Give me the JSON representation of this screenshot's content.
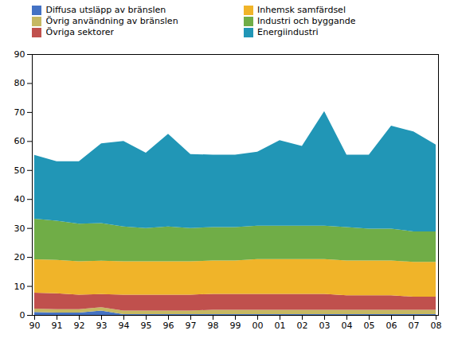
{
  "chart_data": {
    "type": "area",
    "stacked": true,
    "legend": "upper left",
    "categories": [
      "90",
      "91",
      "92",
      "93",
      "94",
      "95",
      "96",
      "97",
      "98",
      "99",
      "00",
      "01",
      "02",
      "03",
      "04",
      "05",
      "06",
      "07",
      "08"
    ],
    "series": [
      {
        "name": "Diffusa utsläpp av bränslen",
        "color": "#4472c4",
        "values": [
          1.0,
          0.8,
          0.8,
          1.5,
          0.3,
          0.3,
          0.3,
          0.3,
          0.3,
          0.3,
          0.3,
          0.3,
          0.3,
          0.3,
          0.3,
          0.3,
          0.3,
          0.3,
          0.3
        ]
      },
      {
        "name": "Övrig användning av bränslen",
        "color": "#c6b862",
        "values": [
          1.2,
          1.2,
          1.2,
          1.2,
          1.2,
          1.2,
          1.2,
          1.2,
          1.5,
          1.5,
          1.5,
          1.5,
          1.5,
          1.5,
          1.5,
          1.5,
          1.5,
          1.5,
          1.5
        ]
      },
      {
        "name": "Övriga sektorer",
        "color": "#c0504d",
        "values": [
          5.5,
          5.5,
          5.0,
          4.5,
          5.5,
          5.5,
          5.5,
          5.5,
          5.5,
          5.5,
          5.5,
          5.5,
          5.5,
          5.5,
          5.0,
          5.0,
          5.0,
          4.5,
          4.5
        ]
      },
      {
        "name": "Inhemsk samfärdsel",
        "color": "#f0b429",
        "values": [
          11.5,
          11.5,
          11.5,
          11.5,
          11.5,
          11.5,
          11.5,
          11.5,
          11.5,
          11.5,
          12.0,
          12.0,
          12.0,
          12.0,
          12.0,
          12.0,
          12.0,
          12.0,
          12.0
        ]
      },
      {
        "name": "Industri och byggande",
        "color": "#70ad47",
        "values": [
          14.0,
          13.5,
          13.0,
          13.0,
          12.0,
          11.5,
          12.0,
          11.5,
          11.5,
          11.5,
          11.5,
          11.5,
          11.5,
          11.5,
          11.5,
          11.0,
          11.0,
          10.5,
          10.5
        ]
      },
      {
        "name": "Energiindustri",
        "color": "#2196b6",
        "values": [
          22.0,
          20.5,
          21.5,
          27.5,
          29.5,
          26.0,
          32.0,
          25.5,
          25.0,
          25.0,
          25.5,
          29.5,
          27.5,
          39.5,
          25.0,
          25.5,
          35.5,
          34.5,
          30.0
        ]
      }
    ],
    "ylim": [
      0,
      90
    ],
    "yticks": [
      0,
      10,
      20,
      30,
      40,
      50,
      60,
      70,
      80,
      90
    ]
  }
}
